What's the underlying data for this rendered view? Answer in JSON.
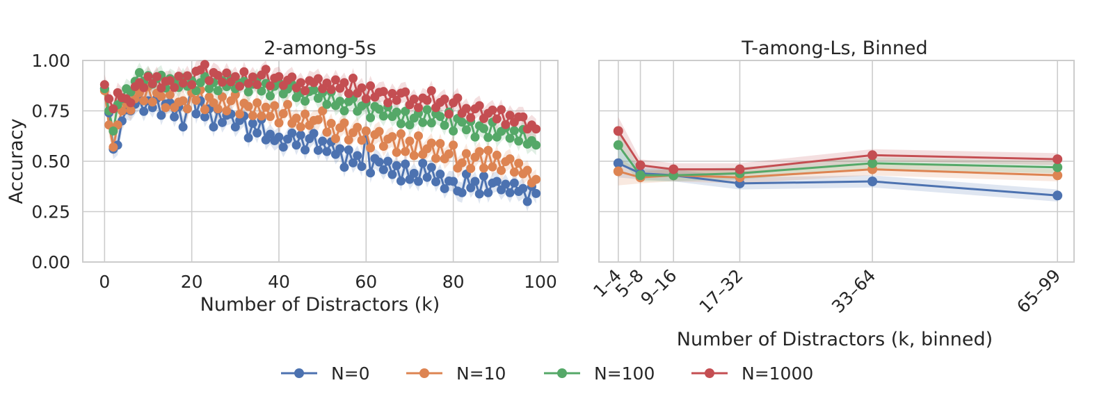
{
  "chart_data": [
    {
      "type": "line",
      "title": "2-among-5s",
      "xlabel": "Number of Distractors (k)",
      "ylabel": "Accuracy",
      "xlim": [
        -5,
        104
      ],
      "ylim": [
        0,
        1.0
      ],
      "xticks": [
        0,
        20,
        40,
        60,
        80,
        100
      ],
      "xtick_labels": [
        "0",
        "20",
        "40",
        "60",
        "80",
        "100"
      ],
      "yticks": [
        0,
        0.25,
        0.5,
        0.75,
        1.0
      ],
      "ytick_labels": [
        "0.00",
        "0.25",
        "0.50",
        "0.75",
        "1.00"
      ],
      "grid": true,
      "confidence_band": 0.05,
      "series": [
        {
          "name": "N=0",
          "start": 0,
          "anchors": [
            [
              0,
              0.86
            ],
            [
              1,
              0.74
            ],
            [
              2,
              0.56
            ],
            [
              3,
              0.58
            ],
            [
              4,
              0.7
            ],
            [
              6,
              0.77
            ],
            [
              10,
              0.78
            ],
            [
              15,
              0.76
            ],
            [
              18,
              0.7
            ],
            [
              20,
              0.8
            ],
            [
              22,
              0.75
            ],
            [
              25,
              0.72
            ],
            [
              30,
              0.7
            ],
            [
              35,
              0.66
            ],
            [
              40,
              0.6
            ],
            [
              45,
              0.6
            ],
            [
              50,
              0.58
            ],
            [
              55,
              0.52
            ],
            [
              60,
              0.5
            ],
            [
              65,
              0.46
            ],
            [
              70,
              0.43
            ],
            [
              75,
              0.43
            ],
            [
              80,
              0.37
            ],
            [
              85,
              0.38
            ],
            [
              90,
              0.37
            ],
            [
              95,
              0.36
            ],
            [
              99,
              0.34
            ]
          ],
          "noise": [
            0,
            0,
            0,
            0,
            0,
            0.02,
            -0.02,
            0.01,
            0.03,
            -0.03,
            0.02,
            -0.01,
            0.04,
            -0.04,
            0.02,
            0.03,
            -0.02,
            0.05,
            -0.03,
            0.01,
            0.08,
            -0.04,
            0.05,
            -0.02,
            0.03,
            -0.05,
            0.04,
            -0.02,
            0.02,
            0.03,
            -0.03,
            0.01,
            0.04,
            -0.06,
            0.02,
            -0.02,
            0.06,
            -0.03,
            0.01,
            -0.01,
            0.02,
            -0.03,
            0.01,
            0.04,
            -0.02,
            0.03,
            -0.04,
            0.02,
            0.05,
            -0.03,
            0.02,
            -0.02,
            0.04,
            -0.01,
            0.03,
            -0.05,
            0.04,
            -0.02,
            0.02,
            -0.03,
            0.15,
            -0.05,
            0.03,
            0.02,
            -0.01,
            0.04,
            -0.02,
            0.03,
            -0.04,
            0.05,
            -0.02,
            0.01,
            -0.03,
            0.06,
            -0.01,
            0.04,
            -0.02,
            0.03,
            -0.03,
            0.02,
            0.03,
            -0.02,
            -0.03,
            0.06,
            -0.01,
            0.02,
            -0.04,
            0.05,
            -0.03,
            0.02,
            0.03,
            -0.01,
            0.02,
            -0.02,
            0.03,
            -0.01,
            0.01,
            -0.05,
            0.03,
            0.0
          ]
        },
        {
          "name": "N=10",
          "start": 0,
          "anchors": [
            [
              0,
              0.85
            ],
            [
              1,
              0.68
            ],
            [
              2,
              0.57
            ],
            [
              3,
              0.68
            ],
            [
              4,
              0.75
            ],
            [
              7,
              0.8
            ],
            [
              10,
              0.83
            ],
            [
              15,
              0.8
            ],
            [
              18,
              0.76
            ],
            [
              20,
              0.82
            ],
            [
              25,
              0.78
            ],
            [
              30,
              0.78
            ],
            [
              35,
              0.75
            ],
            [
              40,
              0.72
            ],
            [
              45,
              0.7
            ],
            [
              50,
              0.67
            ],
            [
              55,
              0.64
            ],
            [
              60,
              0.62
            ],
            [
              65,
              0.6
            ],
            [
              70,
              0.56
            ],
            [
              75,
              0.55
            ],
            [
              80,
              0.52
            ],
            [
              85,
              0.5
            ],
            [
              90,
              0.49
            ],
            [
              95,
              0.46
            ],
            [
              99,
              0.41
            ]
          ],
          "noise": [
            0,
            0,
            0,
            0,
            0,
            0.02,
            -0.03,
            0.01,
            0.03,
            -0.02,
            0.04,
            -0.03,
            0.02,
            0.01,
            -0.04,
            0.03,
            -0.02,
            0.02,
            0.04,
            -0.03,
            0.02,
            -0.01,
            0.05,
            -0.04,
            0.03,
            0.01,
            -0.02,
            0.04,
            -0.03,
            0.02,
            0.05,
            -0.04,
            0.02,
            0.01,
            -0.03,
            0.04,
            -0.02,
            0.03,
            -0.01,
            0.05,
            -0.03,
            0.02,
            0.07,
            -0.02,
            0.01,
            -0.03,
            0.04,
            -0.01,
            0.02,
            0.03,
            0.08,
            -0.02,
            0.03,
            -0.04,
            0.02,
            0.05,
            -0.03,
            0.01,
            0.04,
            -0.02,
            0.03,
            -0.05,
            0.02,
            0.04,
            -0.03,
            0.01,
            0.03,
            -0.04,
            0.06,
            -0.02,
            0.04,
            -0.03,
            0.07,
            -0.02,
            0.01,
            0.04,
            -0.03,
            0.05,
            -0.02,
            0.01,
            0.06,
            -0.05,
            -0.02,
            0.03,
            -0.04,
            0.02,
            0.05,
            -0.03,
            0.06,
            -0.02,
            0.04,
            -0.03,
            0.02,
            0.04,
            -0.02,
            0.03,
            -0.01,
            0.02,
            -0.03,
            0.0
          ]
        },
        {
          "name": "N=100",
          "start": 0,
          "anchors": [
            [
              0,
              0.86
            ],
            [
              1,
              0.75
            ],
            [
              2,
              0.65
            ],
            [
              3,
              0.78
            ],
            [
              5,
              0.84
            ],
            [
              8,
              0.91
            ],
            [
              12,
              0.9
            ],
            [
              15,
              0.89
            ],
            [
              20,
              0.88
            ],
            [
              25,
              0.88
            ],
            [
              30,
              0.88
            ],
            [
              35,
              0.87
            ],
            [
              40,
              0.86
            ],
            [
              45,
              0.83
            ],
            [
              50,
              0.82
            ],
            [
              55,
              0.78
            ],
            [
              60,
              0.76
            ],
            [
              65,
              0.74
            ],
            [
              70,
              0.7
            ],
            [
              75,
              0.72
            ],
            [
              80,
              0.7
            ],
            [
              85,
              0.66
            ],
            [
              90,
              0.64
            ],
            [
              95,
              0.63
            ],
            [
              99,
              0.58
            ]
          ],
          "noise": [
            0,
            0,
            0,
            0,
            0,
            0.02,
            -0.02,
            0.01,
            0.03,
            -0.01,
            0.02,
            -0.02,
            0.01,
            0.03,
            -0.03,
            0.02,
            0.01,
            -0.02,
            0.03,
            -0.01,
            0.02,
            -0.03,
            0.01,
            0.04,
            -0.02,
            0.01,
            -0.03,
            0.02,
            -0.01,
            0.03,
            -0.02,
            0.01,
            0.02,
            -0.03,
            0.01,
            0.04,
            -0.02,
            0.02,
            -0.04,
            0.01,
            0.03,
            -0.02,
            0.01,
            0.04,
            -0.02,
            0.01,
            -0.03,
            0.02,
            0.03,
            -0.01,
            0.02,
            -0.03,
            0.04,
            -0.02,
            0.01,
            -0.03,
            0.02,
            0.04,
            -0.02,
            0.01,
            0.03,
            -0.04,
            0.02,
            0.01,
            -0.02,
            0.03,
            -0.01,
            0.02,
            -0.03,
            0.04,
            -0.02,
            0.01,
            0.03,
            -0.02,
            0.04,
            -0.03,
            0.02,
            0.01,
            -0.03,
            0.04,
            -0.05,
            0.02,
            0.01,
            -0.02,
            0.03,
            -0.04,
            0.02,
            0.01,
            -0.03,
            0.05,
            -0.02,
            0.01,
            0.03,
            -0.02,
            0.02,
            -0.03,
            0.04,
            -0.02,
            0.01,
            0.0
          ]
        },
        {
          "name": "N=1000",
          "start": 0,
          "anchors": [
            [
              0,
              0.88
            ],
            [
              1,
              0.81
            ],
            [
              2,
              0.76
            ],
            [
              3,
              0.84
            ],
            [
              5,
              0.79
            ],
            [
              8,
              0.88
            ],
            [
              12,
              0.9
            ],
            [
              15,
              0.88
            ],
            [
              20,
              0.91
            ],
            [
              23,
              0.96
            ],
            [
              25,
              0.92
            ],
            [
              30,
              0.9
            ],
            [
              35,
              0.91
            ],
            [
              40,
              0.9
            ],
            [
              45,
              0.88
            ],
            [
              50,
              0.88
            ],
            [
              55,
              0.87
            ],
            [
              60,
              0.85
            ],
            [
              65,
              0.82
            ],
            [
              70,
              0.8
            ],
            [
              75,
              0.79
            ],
            [
              80,
              0.77
            ],
            [
              85,
              0.74
            ],
            [
              90,
              0.72
            ],
            [
              95,
              0.7
            ],
            [
              99,
              0.66
            ]
          ],
          "noise": [
            0,
            0,
            0,
            0,
            0,
            0.02,
            -0.03,
            0.02,
            0.01,
            -0.02,
            0.03,
            -0.01,
            0.02,
            -0.03,
            0.01,
            0.02,
            -0.02,
            0.03,
            -0.01,
            0.02,
            -0.03,
            0.02,
            0.01,
            0.02,
            -0.04,
            0.02,
            0.01,
            -0.02,
            0.03,
            -0.01,
            0.02,
            -0.03,
            0.04,
            -0.02,
            0.01,
            -0.03,
            0.02,
            0.05,
            -0.03,
            0.01,
            0.02,
            -0.02,
            0.01,
            0.03,
            -0.02,
            0.01,
            -0.03,
            0.02,
            0.01,
            0.03,
            -0.02,
            0.01,
            -0.02,
            0.03,
            -0.01,
            0.02,
            -0.03,
            0.05,
            -0.02,
            0.01,
            -0.04,
            0.03,
            -0.02,
            0.01,
            0.02,
            -0.03,
            0.02,
            -0.01,
            0.03,
            0.04,
            -0.02,
            0.01,
            -0.03,
            0.02,
            0.01,
            0.06,
            -0.02,
            0.01,
            0.03,
            -0.04,
            0.02,
            0.05,
            -0.02,
            0.01,
            -0.03,
            0.02,
            0.04,
            -0.02,
            0.01,
            0.03,
            -0.01,
            0.04,
            -0.03,
            0.02,
            -0.01,
            0.02,
            0.03,
            -0.02,
            0.01,
            0.0
          ]
        }
      ]
    },
    {
      "type": "line",
      "title": "T-among-Ls, Binned",
      "xlabel": "Number of Distractors (k, binned)",
      "ylabel": "",
      "categories": [
        "1–4",
        "5–8",
        "9–16",
        "17–32",
        "33–64",
        "65–99"
      ],
      "category_x": [
        2.5,
        6.5,
        12.5,
        24.5,
        48.5,
        82
      ],
      "xlim": [
        -1,
        85
      ],
      "ylim": [
        0,
        1.0
      ],
      "yticks": [
        0,
        0.25,
        0.5,
        0.75,
        1.0
      ],
      "grid": true,
      "series": [
        {
          "name": "N=0",
          "values": [
            0.49,
            0.44,
            0.43,
            0.39,
            0.4,
            0.33
          ]
        },
        {
          "name": "N=10",
          "values": [
            0.45,
            0.42,
            0.43,
            0.42,
            0.46,
            0.43
          ]
        },
        {
          "name": "N=100",
          "values": [
            0.58,
            0.43,
            0.43,
            0.44,
            0.49,
            0.47
          ]
        },
        {
          "name": "N=1000",
          "values": [
            0.65,
            0.48,
            0.46,
            0.46,
            0.53,
            0.51
          ]
        }
      ]
    }
  ],
  "legend": {
    "placement": "bottom-center",
    "entries": [
      {
        "label": "N=0",
        "color": "#4c72b0"
      },
      {
        "label": "N=10",
        "color": "#dd8452"
      },
      {
        "label": "N=100",
        "color": "#55a868"
      },
      {
        "label": "N=1000",
        "color": "#c44e52"
      }
    ]
  }
}
